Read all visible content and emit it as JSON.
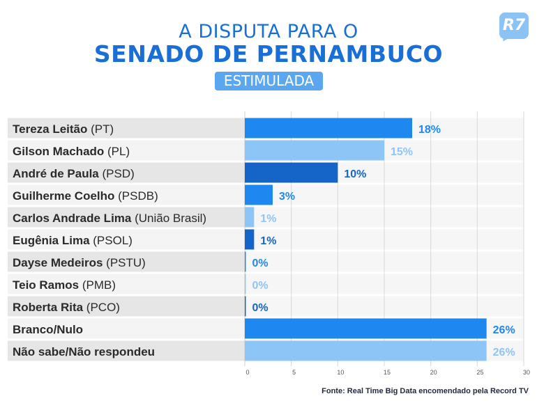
{
  "header": {
    "line1": "A DISPUTA PARA O",
    "line2": "SENADO DE PERNAMBUCO",
    "badge": "ESTIMULADA",
    "logo": "R7"
  },
  "source": "Fonte: Real Time Big Data encomendado pela Record TV",
  "colors": {
    "title": "#1a6fd6",
    "bar_bright": "#1e88f0",
    "bar_light": "#8ec5f7",
    "bar_dark": "#1565c8"
  },
  "chart_data": {
    "type": "bar",
    "orientation": "horizontal",
    "categories": [
      {
        "name": "Tereza Leitão",
        "party": "(PT)"
      },
      {
        "name": "Gilson Machado",
        "party": "(PL)"
      },
      {
        "name": "André de Paula",
        "party": "(PSD)"
      },
      {
        "name": "Guilherme Coelho",
        "party": "(PSDB)"
      },
      {
        "name": "Carlos Andrade Lima",
        "party": "(União Brasil)"
      },
      {
        "name": "Eugênia Lima",
        "party": "(PSOL)"
      },
      {
        "name": "Dayse Medeiros",
        "party": "(PSTU)"
      },
      {
        "name": "Teio Ramos",
        "party": "(PMB)"
      },
      {
        "name": "Roberta Rita",
        "party": "(PCO)"
      },
      {
        "name": "Branco/Nulo",
        "party": ""
      },
      {
        "name": "Não sabe/Não respondeu",
        "party": ""
      }
    ],
    "values": [
      18,
      15,
      10,
      3,
      1,
      1,
      0,
      0,
      0,
      26,
      26
    ],
    "value_labels": [
      "18%",
      "15%",
      "10%",
      "3%",
      "1%",
      "1%",
      "0%",
      "0%",
      "0%",
      "26%",
      "26%"
    ],
    "bar_colors": [
      "#1e88f0",
      "#8ec5f7",
      "#1565c8",
      "#1e88f0",
      "#8ec5f7",
      "#1565c8",
      "#1e88f0",
      "#8ec5f7",
      "#1565c8",
      "#1e88f0",
      "#8ec5f7"
    ],
    "xlim": [
      0,
      30
    ],
    "xticks": [
      "0",
      "5",
      "10",
      "15",
      "20",
      "25",
      "30"
    ],
    "grid": true
  }
}
